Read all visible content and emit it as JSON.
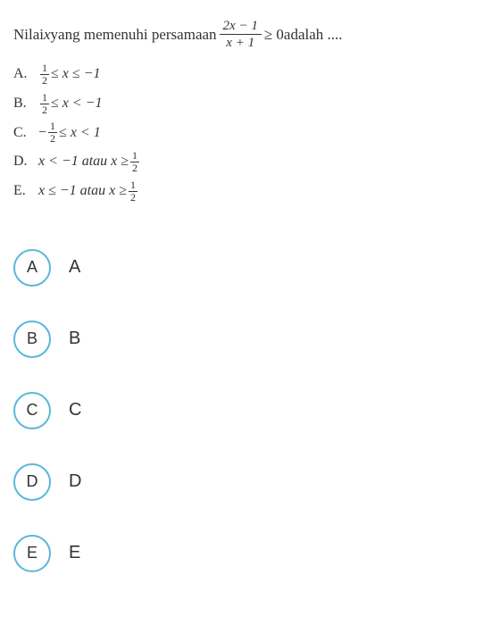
{
  "question": {
    "prefix": "Nilai ",
    "variable": "x",
    "middle": "yang memenuhi  persamaan",
    "frac_num": "2x − 1",
    "frac_den": "x + 1",
    "suffix": " ≥ 0adalah ...."
  },
  "options": [
    {
      "letter": "A.",
      "frac_num": "1",
      "frac_den": "2",
      "rest": " ≤ x ≤ −1",
      "has_neg": false,
      "has_frac": true,
      "tail_frac": false
    },
    {
      "letter": "B.",
      "frac_num": "1",
      "frac_den": "2",
      "rest": " ≤ x < −1",
      "has_neg": false,
      "has_frac": true,
      "tail_frac": false
    },
    {
      "letter": "C.",
      "frac_num": "1",
      "frac_den": "2",
      "rest": " ≤ x < 1",
      "has_neg": true,
      "has_frac": true,
      "tail_frac": false
    },
    {
      "letter": "D.",
      "pre": "x < −1  atau  x ≥ ",
      "tail_num": "1",
      "tail_den": "2",
      "has_frac": false,
      "tail_frac": true
    },
    {
      "letter": "E.",
      "pre": "x ≤ −1  atau  x  ≥ ",
      "tail_num": "1",
      "tail_den": "2",
      "has_frac": false,
      "tail_frac": true
    }
  ],
  "choices": [
    {
      "btn": "A",
      "label": "A"
    },
    {
      "btn": "B",
      "label": "B"
    },
    {
      "btn": "C",
      "label": "C"
    },
    {
      "btn": "D",
      "label": "D"
    },
    {
      "btn": "E",
      "label": "E"
    }
  ],
  "colors": {
    "circle_border": "#5bb8d9",
    "text": "#333333",
    "background": "#ffffff"
  }
}
